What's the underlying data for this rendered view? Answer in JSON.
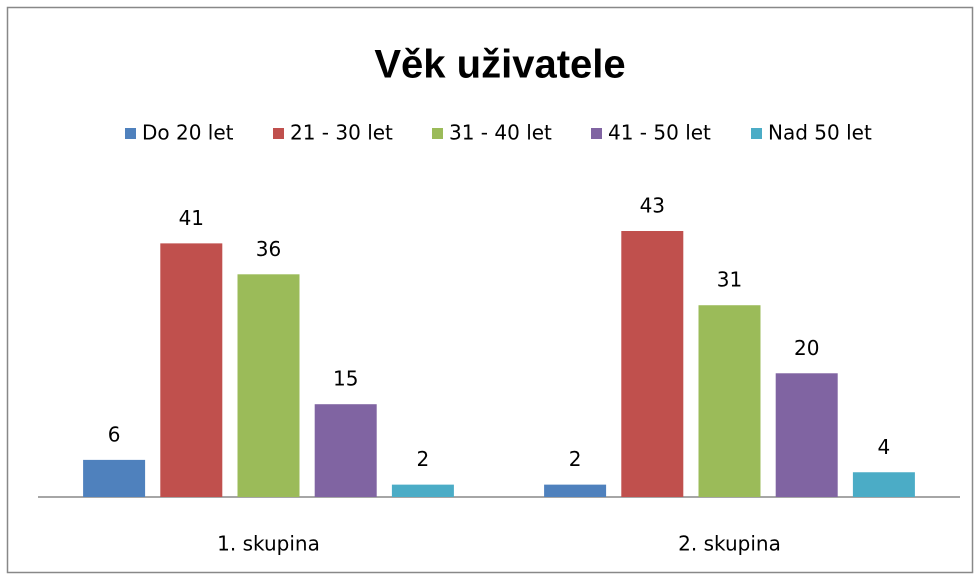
{
  "chart_data": {
    "type": "bar",
    "title": "Věk uživatele",
    "categories": [
      "1. skupina",
      "2. skupina"
    ],
    "series": [
      {
        "name": "Do 20 let",
        "color": "#4f81bd",
        "values": [
          6,
          2
        ]
      },
      {
        "name": "21 - 30 let",
        "color": "#c0504d",
        "values": [
          41,
          43
        ]
      },
      {
        "name": "31 - 40 let",
        "color": "#9bbb59",
        "values": [
          36,
          31
        ]
      },
      {
        "name": "41 - 50 let",
        "color": "#8064a2",
        "values": [
          15,
          20
        ]
      },
      {
        "name": "Nad 50 let",
        "color": "#4bacc6",
        "values": [
          2,
          4
        ]
      }
    ],
    "legend": "top"
  }
}
